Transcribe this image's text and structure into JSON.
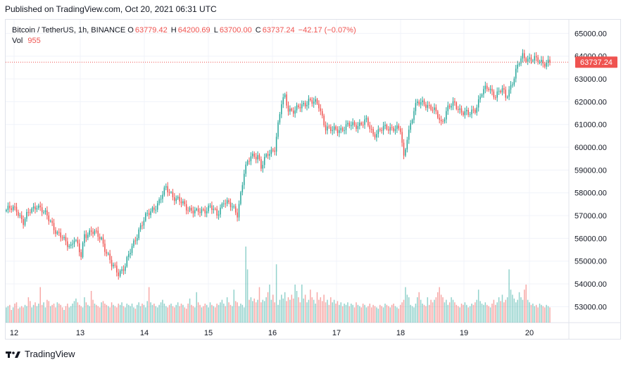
{
  "header": {
    "published": "Published on TradingView.com, Oct 20, 2021 06:31 UTC"
  },
  "legend": {
    "symbol": "Bitcoin / TetherUS, 1h, BINANCE",
    "open_label": "O",
    "open": "63779.42",
    "high_label": "H",
    "high": "64200.69",
    "low_label": "L",
    "low": "63700.00",
    "close_label": "C",
    "close": "63737.24",
    "change": "−42.17 (−0.07%)",
    "vol_label": "Vol",
    "vol": "955"
  },
  "last_price_tag": "63737.24",
  "footer": {
    "brand": "TradingView"
  },
  "colors": {
    "up": "#26a69a",
    "down": "#ef5350",
    "grid": "#f0f3fa",
    "axis": "#131722"
  },
  "chart_data": {
    "type": "candlestick",
    "title": "Bitcoin / TetherUS, 1h, BINANCE",
    "ylabel": "",
    "xlabel": "",
    "ylim": [
      52300,
      65600
    ],
    "y_ticks": [
      "65000.00",
      "64000.00",
      "63000.00",
      "62000.00",
      "61000.00",
      "60000.00",
      "59000.00",
      "58000.00",
      "57000.00",
      "56000.00",
      "55000.00",
      "54000.00",
      "53000.00"
    ],
    "x_ticks": [
      "12",
      "13",
      "14",
      "15",
      "16",
      "17",
      "18",
      "19",
      "20"
    ],
    "last_price": 63737.24,
    "anchors": [
      [
        0,
        57250
      ],
      [
        6,
        57300
      ],
      [
        10,
        56700
      ],
      [
        14,
        57200
      ],
      [
        18,
        57500
      ],
      [
        22,
        57100
      ],
      [
        26,
        56800
      ],
      [
        30,
        56200
      ],
      [
        34,
        55900
      ],
      [
        38,
        55700
      ],
      [
        40,
        56000
      ],
      [
        44,
        55200
      ],
      [
        46,
        56200
      ],
      [
        50,
        56300
      ],
      [
        56,
        56000
      ],
      [
        60,
        55200
      ],
      [
        62,
        54800
      ],
      [
        66,
        54500
      ],
      [
        70,
        54800
      ],
      [
        74,
        55600
      ],
      [
        78,
        56400
      ],
      [
        82,
        56900
      ],
      [
        86,
        57300
      ],
      [
        90,
        57600
      ],
      [
        94,
        58200
      ],
      [
        96,
        58100
      ],
      [
        100,
        57700
      ],
      [
        104,
        57500
      ],
      [
        108,
        57300
      ],
      [
        112,
        57100
      ],
      [
        116,
        57250
      ],
      [
        120,
        57400
      ],
      [
        124,
        57000
      ],
      [
        128,
        57700
      ],
      [
        132,
        57400
      ],
      [
        136,
        57100
      ],
      [
        140,
        58900
      ],
      [
        144,
        59600
      ],
      [
        148,
        59700
      ],
      [
        150,
        59100
      ],
      [
        154,
        59700
      ],
      [
        158,
        60000
      ],
      [
        162,
        61900
      ],
      [
        164,
        62200
      ],
      [
        166,
        61700
      ],
      [
        170,
        61600
      ],
      [
        174,
        61800
      ],
      [
        178,
        62100
      ],
      [
        180,
        62000
      ],
      [
        184,
        61800
      ],
      [
        188,
        60900
      ],
      [
        192,
        60700
      ],
      [
        196,
        60800
      ],
      [
        200,
        60900
      ],
      [
        206,
        61000
      ],
      [
        212,
        61100
      ],
      [
        216,
        60600
      ],
      [
        222,
        60800
      ],
      [
        228,
        60900
      ],
      [
        232,
        60700
      ],
      [
        234,
        59500
      ],
      [
        236,
        60500
      ],
      [
        240,
        61600
      ],
      [
        242,
        61900
      ],
      [
        246,
        62000
      ],
      [
        250,
        61700
      ],
      [
        254,
        61400
      ],
      [
        256,
        61100
      ],
      [
        260,
        61700
      ],
      [
        264,
        61900
      ],
      [
        268,
        61600
      ],
      [
        272,
        61400
      ],
      [
        276,
        61700
      ],
      [
        280,
        62400
      ],
      [
        284,
        62600
      ],
      [
        288,
        62300
      ],
      [
        292,
        62500
      ],
      [
        294,
        62200
      ],
      [
        298,
        62900
      ],
      [
        302,
        63700
      ],
      [
        304,
        64000
      ],
      [
        308,
        63900
      ],
      [
        312,
        63800
      ],
      [
        316,
        63750
      ],
      [
        320,
        63740
      ]
    ],
    "volumes": [
      12,
      13,
      14,
      10,
      12,
      15,
      16,
      11,
      12,
      13,
      12,
      14,
      13,
      20,
      17,
      12,
      14,
      16,
      13,
      15,
      28,
      14,
      16,
      12,
      18,
      17,
      13,
      14,
      15,
      12,
      16,
      15,
      14,
      12,
      10,
      13,
      15,
      12,
      13,
      15,
      17,
      19,
      16,
      14,
      13,
      12,
      20,
      16,
      14,
      13,
      25,
      18,
      15,
      14,
      13,
      12,
      16,
      17,
      15,
      14,
      13,
      12,
      16,
      14,
      13,
      12,
      15,
      14,
      16,
      13,
      12,
      15,
      14,
      13,
      15,
      12,
      11,
      14,
      16,
      13,
      15,
      14,
      12,
      17,
      28,
      16,
      14,
      15,
      13,
      12,
      14,
      16,
      18,
      15,
      13,
      12,
      14,
      15,
      13,
      12,
      14,
      16,
      13,
      15,
      14,
      12,
      11,
      15,
      19,
      14,
      13,
      12,
      24,
      16,
      14,
      12,
      13,
      15,
      14,
      12,
      16,
      14,
      13,
      12,
      15,
      14,
      16,
      18,
      15,
      13,
      20,
      16,
      14,
      13,
      26,
      17,
      16,
      13,
      15,
      14,
      12,
      60,
      42,
      18,
      20,
      17,
      19,
      16,
      18,
      28,
      16,
      18,
      17,
      20,
      24,
      30,
      18,
      22,
      16,
      46,
      14,
      18,
      22,
      19,
      24,
      17,
      20,
      18,
      22,
      19,
      30,
      25,
      20,
      16,
      30,
      19,
      22,
      16,
      18,
      26,
      20,
      18,
      15,
      24,
      18,
      20,
      17,
      22,
      16,
      18,
      14,
      20,
      16,
      18,
      15,
      17,
      14,
      16,
      13,
      15,
      14,
      16,
      13,
      15,
      14,
      12,
      16,
      14,
      13,
      12,
      15,
      14,
      12,
      13,
      15,
      12,
      14,
      13,
      12,
      11,
      14,
      13,
      12,
      15,
      14,
      13,
      12,
      14,
      15,
      13,
      12,
      11,
      14,
      16,
      18,
      28,
      22,
      20,
      14,
      13,
      12,
      15,
      20,
      24,
      18,
      15,
      14,
      13,
      20,
      14,
      18,
      16,
      18,
      20,
      24,
      28,
      22,
      20,
      16,
      18,
      14,
      16,
      20,
      18,
      16,
      14,
      13,
      12,
      15,
      14,
      16,
      14,
      12,
      13,
      15,
      14,
      16,
      18,
      26,
      17,
      15,
      14,
      16,
      14,
      13,
      12,
      15,
      18,
      14,
      16,
      20,
      17,
      22,
      16,
      18,
      20,
      42,
      26,
      22,
      19,
      16,
      18,
      24,
      20,
      18,
      26,
      30,
      18,
      16,
      14,
      15,
      13,
      14,
      12,
      15,
      14,
      13,
      12,
      14,
      13,
      12,
      11,
      12,
      13,
      14,
      12,
      11,
      12,
      13,
      12,
      11,
      12,
      13,
      12,
      11,
      12,
      13,
      11,
      12
    ]
  }
}
